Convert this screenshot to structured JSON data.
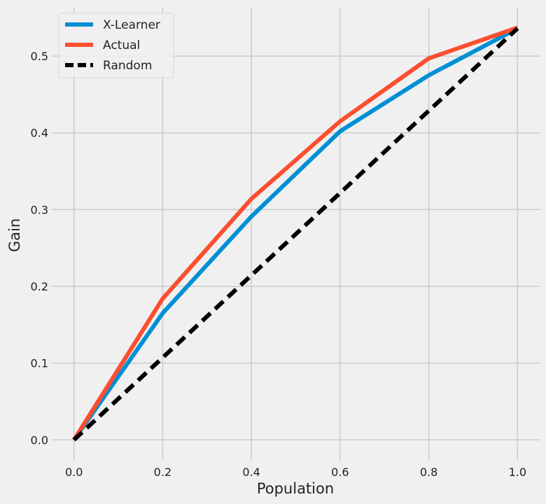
{
  "chart_data": {
    "type": "line",
    "title": "",
    "xlabel": "Population",
    "ylabel": "Gain",
    "xlim": [
      -0.05,
      1.05
    ],
    "ylim": [
      -0.027,
      0.563
    ],
    "xticks": [
      "0.0",
      "0.2",
      "0.4",
      "0.6",
      "0.8",
      "1.0"
    ],
    "yticks": [
      "0.0",
      "0.1",
      "0.2",
      "0.3",
      "0.4",
      "0.5"
    ],
    "grid": true,
    "legend_position": "top-left",
    "x": [
      0.0,
      0.2,
      0.4,
      0.6,
      0.8,
      1.0
    ],
    "series": [
      {
        "name": "X-Learner",
        "color": "#008fd5",
        "style": "solid",
        "values": [
          0.0,
          0.165,
          0.291,
          0.402,
          0.475,
          0.536
        ]
      },
      {
        "name": "Actual",
        "color": "#fc4f30",
        "style": "solid",
        "values": [
          0.0,
          0.184,
          0.314,
          0.415,
          0.497,
          0.537
        ]
      },
      {
        "name": "Random",
        "color": "#000000",
        "style": "dashed",
        "values": [
          0.0,
          0.1072,
          0.2144,
          0.3216,
          0.4288,
          0.536
        ]
      }
    ]
  }
}
